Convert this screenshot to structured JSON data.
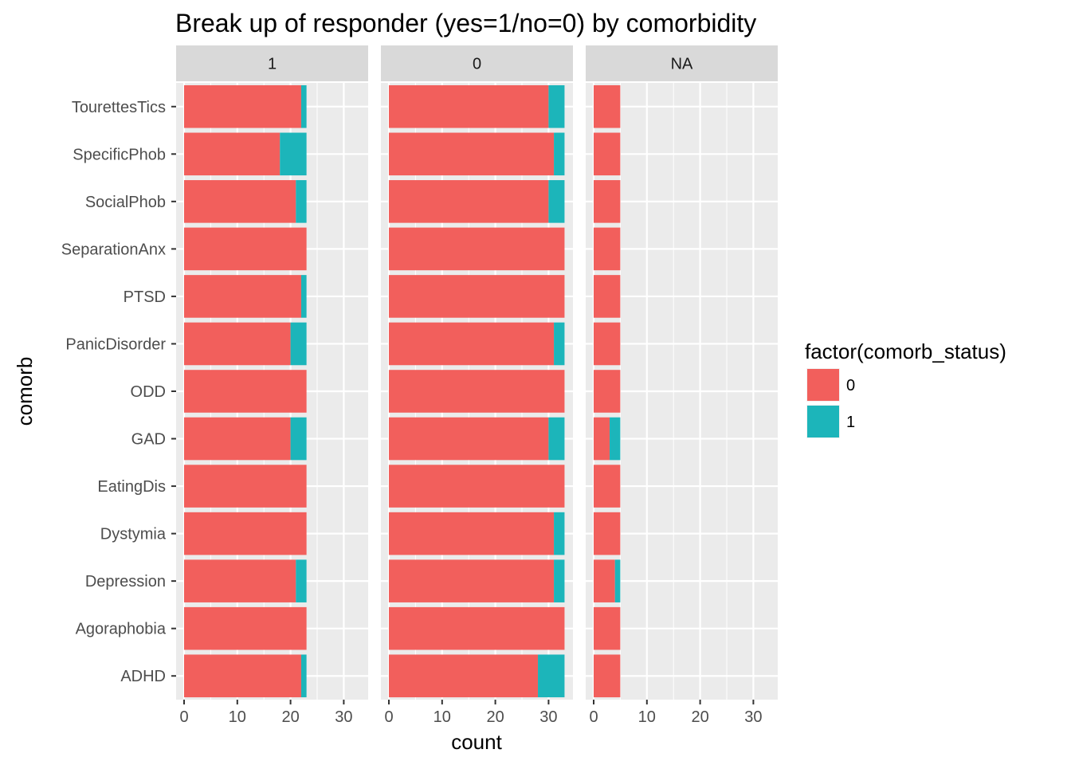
{
  "chart_data": {
    "type": "bar",
    "orientation": "horizontal",
    "stacked": true,
    "title": "Break up of responder (yes=1/no=0) by comorbidity",
    "xlabel": "count",
    "ylabel": "comorb",
    "xlim": [
      0,
      33
    ],
    "x_ticks": [
      "0",
      "10",
      "20",
      "30"
    ],
    "grid": true,
    "categories": [
      "TourettesTics",
      "SpecificPhob",
      "SocialPhob",
      "SeparationAnx",
      "PTSD",
      "PanicDisorder",
      "ODD",
      "GAD",
      "EatingDis",
      "Dystymia",
      "Depression",
      "Agoraphobia",
      "ADHD"
    ],
    "legend": {
      "title": "factor(comorb_status)",
      "position": "right",
      "items": [
        {
          "label": "0",
          "color": "#F8766D"
        },
        {
          "label": "1",
          "color": "#00BFC4"
        }
      ]
    },
    "colors": {
      "status_0": "#F25F5C",
      "status_1": "#1CB5BA",
      "panel_bg": "#EBEBEB",
      "strip_bg": "#D9D9D9"
    },
    "panels": [
      {
        "label": "1",
        "series": [
          {
            "name": "0",
            "values": [
              22,
              18,
              21,
              23,
              22,
              20,
              23,
              20,
              23,
              23,
              21,
              23,
              22
            ]
          },
          {
            "name": "1",
            "values": [
              1,
              5,
              2,
              0,
              1,
              3,
              0,
              3,
              0,
              0,
              2,
              0,
              1
            ]
          }
        ]
      },
      {
        "label": "0",
        "series": [
          {
            "name": "0",
            "values": [
              30,
              31,
              30,
              33,
              33,
              31,
              33,
              30,
              33,
              31,
              31,
              33,
              28
            ]
          },
          {
            "name": "1",
            "values": [
              3,
              2,
              3,
              0,
              0,
              2,
              0,
              3,
              0,
              2,
              2,
              0,
              5
            ]
          }
        ]
      },
      {
        "label": "NA",
        "series": [
          {
            "name": "0",
            "values": [
              5,
              5,
              5,
              5,
              5,
              5,
              5,
              3,
              5,
              5,
              4,
              5,
              5
            ]
          },
          {
            "name": "1",
            "values": [
              0,
              0,
              0,
              0,
              0,
              0,
              0,
              2,
              0,
              0,
              1,
              0,
              0
            ]
          }
        ]
      }
    ]
  }
}
